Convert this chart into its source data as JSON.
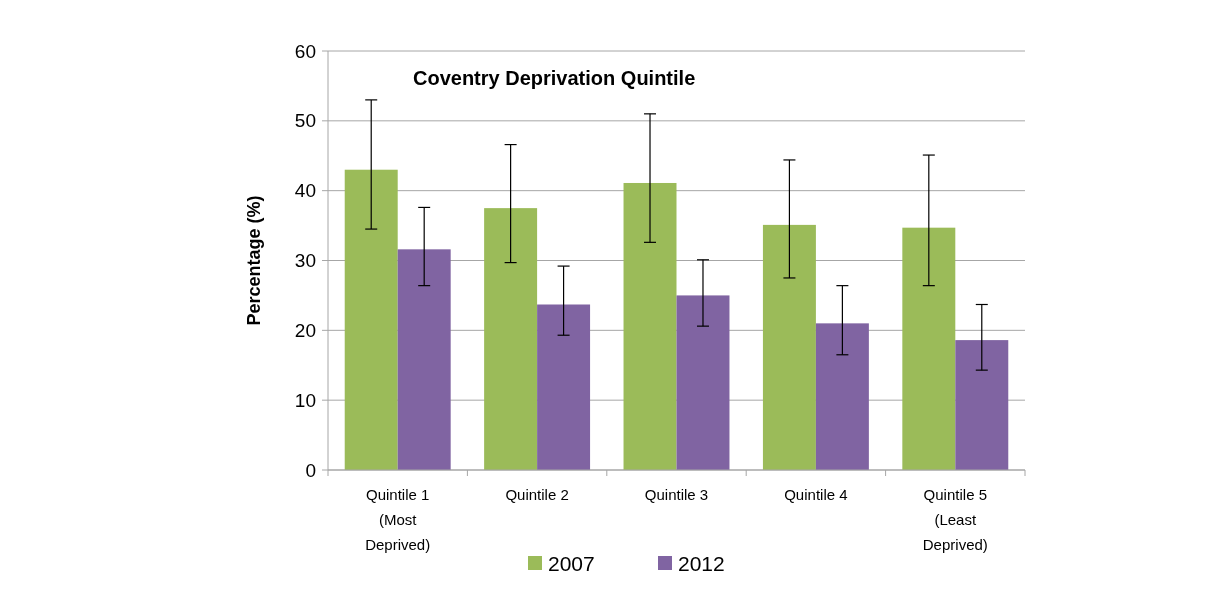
{
  "chart_data": {
    "type": "bar",
    "title": "Coventry Deprivation Quintile",
    "ylabel": "Percentage (%)",
    "categories": [
      "Quintile 1 (Most Deprived)",
      "Quintile 2",
      "Quintile 3",
      "Quintile 4",
      "Quintile 5 (Least Deprived)"
    ],
    "series": [
      {
        "name": "2007",
        "color": "#9bbb59",
        "values": [
          43.0,
          37.5,
          41.1,
          35.1,
          34.7
        ],
        "errors": [
          [
            34.5,
            53.0
          ],
          [
            29.7,
            46.6
          ],
          [
            32.6,
            51.0
          ],
          [
            27.5,
            44.4
          ],
          [
            26.4,
            45.1
          ]
        ]
      },
      {
        "name": "2012",
        "color": "#8064a2",
        "values": [
          31.6,
          23.7,
          25.0,
          21.0,
          18.6
        ],
        "errors": [
          [
            26.4,
            37.6
          ],
          [
            19.3,
            29.2
          ],
          [
            20.6,
            30.1
          ],
          [
            16.5,
            26.4
          ],
          [
            14.3,
            23.7
          ]
        ]
      }
    ],
    "ylim": [
      0,
      60
    ],
    "yticks": [
      0,
      10,
      20,
      30,
      40,
      50,
      60
    ],
    "grid": "y",
    "legend": "bottom"
  }
}
